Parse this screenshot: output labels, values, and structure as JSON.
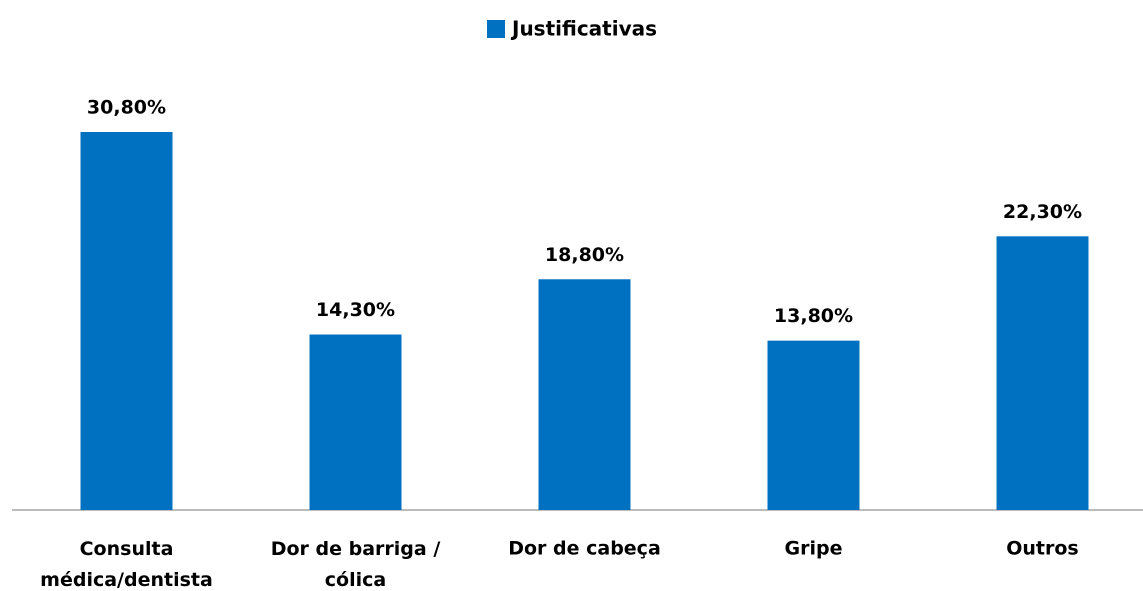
{
  "chart_data": {
    "type": "bar",
    "categories": [
      "Consulta\nmédica/dentista",
      "Dor de barriga /\ncólica",
      "Dor de cabeça",
      "Gripe",
      "Outros"
    ],
    "series": [
      {
        "name": "Justificativas",
        "color": "#0070c0",
        "values": [
          30.8,
          14.3,
          18.8,
          13.8,
          22.3
        ],
        "value_labels": [
          "30,80%",
          "14,30%",
          "18,80%",
          "13,80%",
          "22,30%"
        ]
      }
    ],
    "legend": "top"
  }
}
